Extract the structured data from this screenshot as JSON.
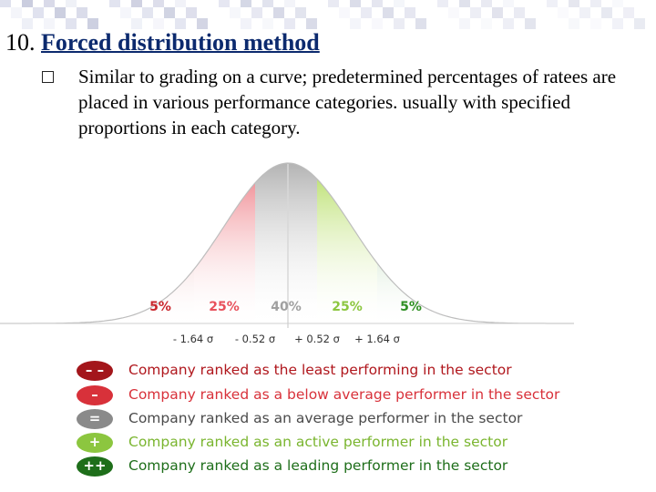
{
  "slide": {
    "number": "10.",
    "title": "Forced distribution method",
    "bullet": "Similar to grading on a curve; predetermined percentages of ratees are placed in various performance categories. usually with specified proportions in each category."
  },
  "curve": {
    "segments": [
      {
        "percent": "5%",
        "color": "#c9262c"
      },
      {
        "percent": "25%",
        "color": "#e8505b"
      },
      {
        "percent": "40%",
        "color": "#9e9e9e"
      },
      {
        "percent": "25%",
        "color": "#9dd22f"
      },
      {
        "percent": "5%",
        "color": "#2e8f22"
      }
    ],
    "sigma_labels": [
      "- 1.64 σ",
      "- 0.52 σ",
      "+ 0.52 σ",
      "+ 1.64 σ"
    ]
  },
  "legend": [
    {
      "symbol": "– –",
      "color": "#a3161b",
      "text": "Company ranked as the least performing in the sector",
      "text_color": "#b0171d"
    },
    {
      "symbol": "–",
      "color": "#d8313a",
      "text": "Company ranked as a below average performer in the sector",
      "text_color": "#d8313a"
    },
    {
      "symbol": "=",
      "color": "#8a8a8a",
      "text": "Company ranked as an average performer in the sector",
      "text_color": "#4a4a4a"
    },
    {
      "symbol": "+",
      "color": "#8cc63f",
      "text": "Company ranked as an active performer in the sector",
      "text_color": "#7ab52f"
    },
    {
      "symbol": "++",
      "color": "#1e6e1a",
      "text": "Company ranked as a leading performer in the sector",
      "text_color": "#1e6e1a"
    }
  ]
}
